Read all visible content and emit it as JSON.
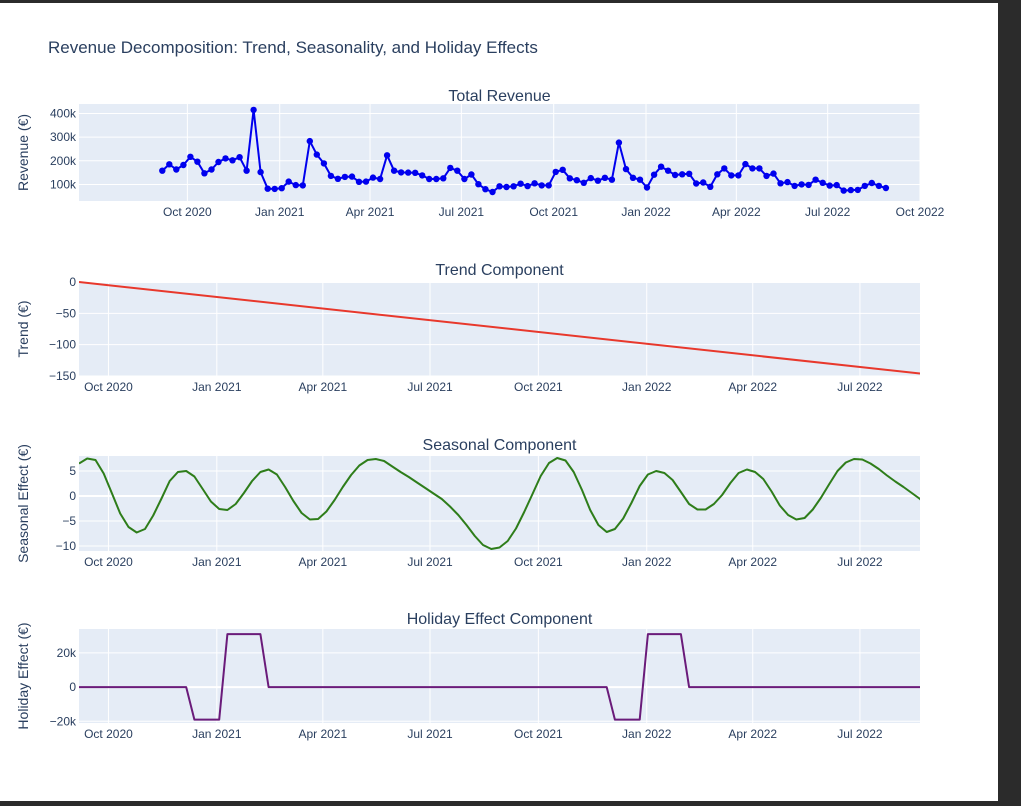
{
  "page": {
    "title": "Revenue Decomposition: Trend, Seasonality, and Holiday Effects"
  },
  "chart_data": [
    {
      "type": "line",
      "title": "Total Revenue",
      "ylabel": "Revenue (€)",
      "xlabel": "",
      "color": "#0000ee",
      "markers": true,
      "x_ticks": [
        "2020-10-01",
        "2021-01-01",
        "2021-04-01",
        "2021-07-01",
        "2021-10-01",
        "2022-01-01",
        "2022-04-01",
        "2022-07-01",
        "2022-10-01"
      ],
      "x_tick_labels": [
        "Oct 2020",
        "Jan 2021",
        "Apr 2021",
        "Jul 2021",
        "Oct 2021",
        "Jan 2022",
        "Apr 2022",
        "Jul 2022",
        "Oct 2022"
      ],
      "xlim": [
        "2020-06-15",
        "2022-10-01"
      ],
      "y_ticks": [
        100000,
        200000,
        300000,
        400000
      ],
      "y_tick_labels": [
        "100k",
        "200k",
        "300k",
        "400k"
      ],
      "ylim": [
        30000,
        440000
      ],
      "grid": true,
      "x_start": "2020-09-06",
      "x_step_days": 7,
      "values": [
        158000,
        185000,
        163000,
        182000,
        217000,
        196000,
        147000,
        163000,
        195000,
        210000,
        202000,
        215000,
        158000,
        415000,
        152000,
        82000,
        81000,
        84000,
        112000,
        97000,
        96000,
        283000,
        226000,
        189000,
        136000,
        124000,
        132000,
        133000,
        111000,
        112000,
        129000,
        123000,
        223000,
        158000,
        151000,
        150000,
        149000,
        138000,
        123000,
        123000,
        126000,
        170000,
        158000,
        123000,
        142000,
        101000,
        80000,
        68000,
        92000,
        89000,
        92000,
        103000,
        93000,
        105000,
        96000,
        96000,
        153000,
        162000,
        126000,
        118000,
        107000,
        127000,
        116000,
        128000,
        120000,
        277000,
        165000,
        128000,
        120000,
        87000,
        141000,
        175000,
        158000,
        140000,
        143000,
        145000,
        104000,
        108000,
        90000,
        143000,
        168000,
        138000,
        138000,
        186000,
        168000,
        168000,
        136000,
        146000,
        105000,
        110000,
        94000,
        100000,
        98000,
        120000,
        107000,
        95000,
        97000,
        74000,
        76000,
        77000,
        94000,
        106000,
        94000,
        85000
      ]
    },
    {
      "type": "line",
      "title": "Trend Component",
      "ylabel": "Trend (€)",
      "xlabel": "",
      "color": "#e8382c",
      "x_ticks": [
        "2020-10-01",
        "2021-01-01",
        "2021-04-01",
        "2021-07-01",
        "2021-10-01",
        "2022-01-01",
        "2022-04-01",
        "2022-07-01"
      ],
      "x_tick_labels": [
        "Oct 2020",
        "Jan 2021",
        "Apr 2021",
        "Jul 2021",
        "Oct 2021",
        "Jan 2022",
        "Apr 2022",
        "Jul 2022"
      ],
      "xlim": [
        "2020-09-06",
        "2022-08-21"
      ],
      "y_ticks": [
        0,
        -50,
        -100,
        -150
      ],
      "y_tick_labels": [
        "0",
        "−50",
        "−100",
        "−150"
      ],
      "ylim": [
        -150,
        0
      ],
      "grid": true,
      "x": [
        "2020-09-06",
        "2022-08-21"
      ],
      "values": [
        0,
        -146
      ]
    },
    {
      "type": "line",
      "title": "Seasonal Component",
      "ylabel": "Seasonal Effect (€)",
      "xlabel": "",
      "color": "#2e7d1a",
      "x_ticks": [
        "2020-10-01",
        "2021-01-01",
        "2021-04-01",
        "2021-07-01",
        "2021-10-01",
        "2022-01-01",
        "2022-04-01",
        "2022-07-01"
      ],
      "x_tick_labels": [
        "Oct 2020",
        "Jan 2021",
        "Apr 2021",
        "Jul 2021",
        "Oct 2021",
        "Jan 2022",
        "Apr 2022",
        "Jul 2022"
      ],
      "xlim": [
        "2020-09-06",
        "2022-08-21"
      ],
      "y_ticks": [
        5,
        0,
        -5,
        -10
      ],
      "y_tick_labels": [
        "5",
        "0",
        "−5",
        "−10"
      ],
      "ylim": [
        -11,
        8
      ],
      "grid": true,
      "x_start": "2020-09-06",
      "x_step_days": 7,
      "values": [
        6.5,
        7.5,
        7.2,
        4.5,
        0.5,
        -3.5,
        -6.2,
        -7.3,
        -6.6,
        -3.9,
        -0.5,
        3.0,
        4.8,
        5.0,
        3.9,
        1.4,
        -1.1,
        -2.6,
        -2.8,
        -1.6,
        0.6,
        3.0,
        4.8,
        5.3,
        4.3,
        1.8,
        -1.0,
        -3.4,
        -4.7,
        -4.6,
        -3.1,
        -0.8,
        1.8,
        4.2,
        6.1,
        7.2,
        7.4,
        7.0,
        5.9,
        4.8,
        3.8,
        2.7,
        1.6,
        0.5,
        -0.6,
        -2.1,
        -3.8,
        -5.8,
        -8.0,
        -9.8,
        -10.6,
        -10.3,
        -9.0,
        -6.5,
        -3.2,
        0.4,
        4.0,
        6.6,
        7.6,
        7.1,
        4.8,
        1.2,
        -2.8,
        -5.8,
        -7.2,
        -6.6,
        -4.5,
        -1.4,
        2.0,
        4.3,
        5.0,
        4.6,
        3.2,
        0.8,
        -1.6,
        -2.7,
        -2.7,
        -1.6,
        0.2,
        2.6,
        4.6,
        5.3,
        4.8,
        3.4,
        0.9,
        -1.9,
        -3.8,
        -4.7,
        -4.4,
        -2.7,
        -0.3,
        2.4,
        5.0,
        6.7,
        7.4,
        7.3,
        6.5,
        5.4,
        4.1,
        2.9,
        1.8,
        0.6,
        -0.6,
        -2.2
      ]
    },
    {
      "type": "line",
      "title": "Holiday Effect Component",
      "ylabel": "Holiday Effect (€)",
      "xlabel": "",
      "color": "#6a1b7a",
      "x_ticks": [
        "2020-10-01",
        "2021-01-01",
        "2021-04-01",
        "2021-07-01",
        "2021-10-01",
        "2022-01-01",
        "2022-04-01",
        "2022-07-01"
      ],
      "x_tick_labels": [
        "Oct 2020",
        "Jan 2021",
        "Apr 2021",
        "Jul 2021",
        "Oct 2021",
        "Jan 2022",
        "Apr 2022",
        "Jul 2022"
      ],
      "xlim": [
        "2020-09-06",
        "2022-08-21"
      ],
      "y_ticks": [
        20000,
        0,
        -20000
      ],
      "y_tick_labels": [
        "20k",
        "0",
        "−20k"
      ],
      "ylim": [
        -21000,
        34000
      ],
      "grid": true,
      "x": [
        "2020-09-06",
        "2020-12-06",
        "2020-12-13",
        "2021-01-03",
        "2021-01-10",
        "2021-02-07",
        "2021-02-14",
        "2021-11-28",
        "2021-12-05",
        "2021-12-26",
        "2022-01-02",
        "2022-01-30",
        "2022-02-06",
        "2022-08-21"
      ],
      "values": [
        0,
        0,
        -19000,
        -19000,
        31000,
        31000,
        0,
        0,
        -19000,
        -19000,
        31000,
        31000,
        0,
        0
      ]
    }
  ]
}
